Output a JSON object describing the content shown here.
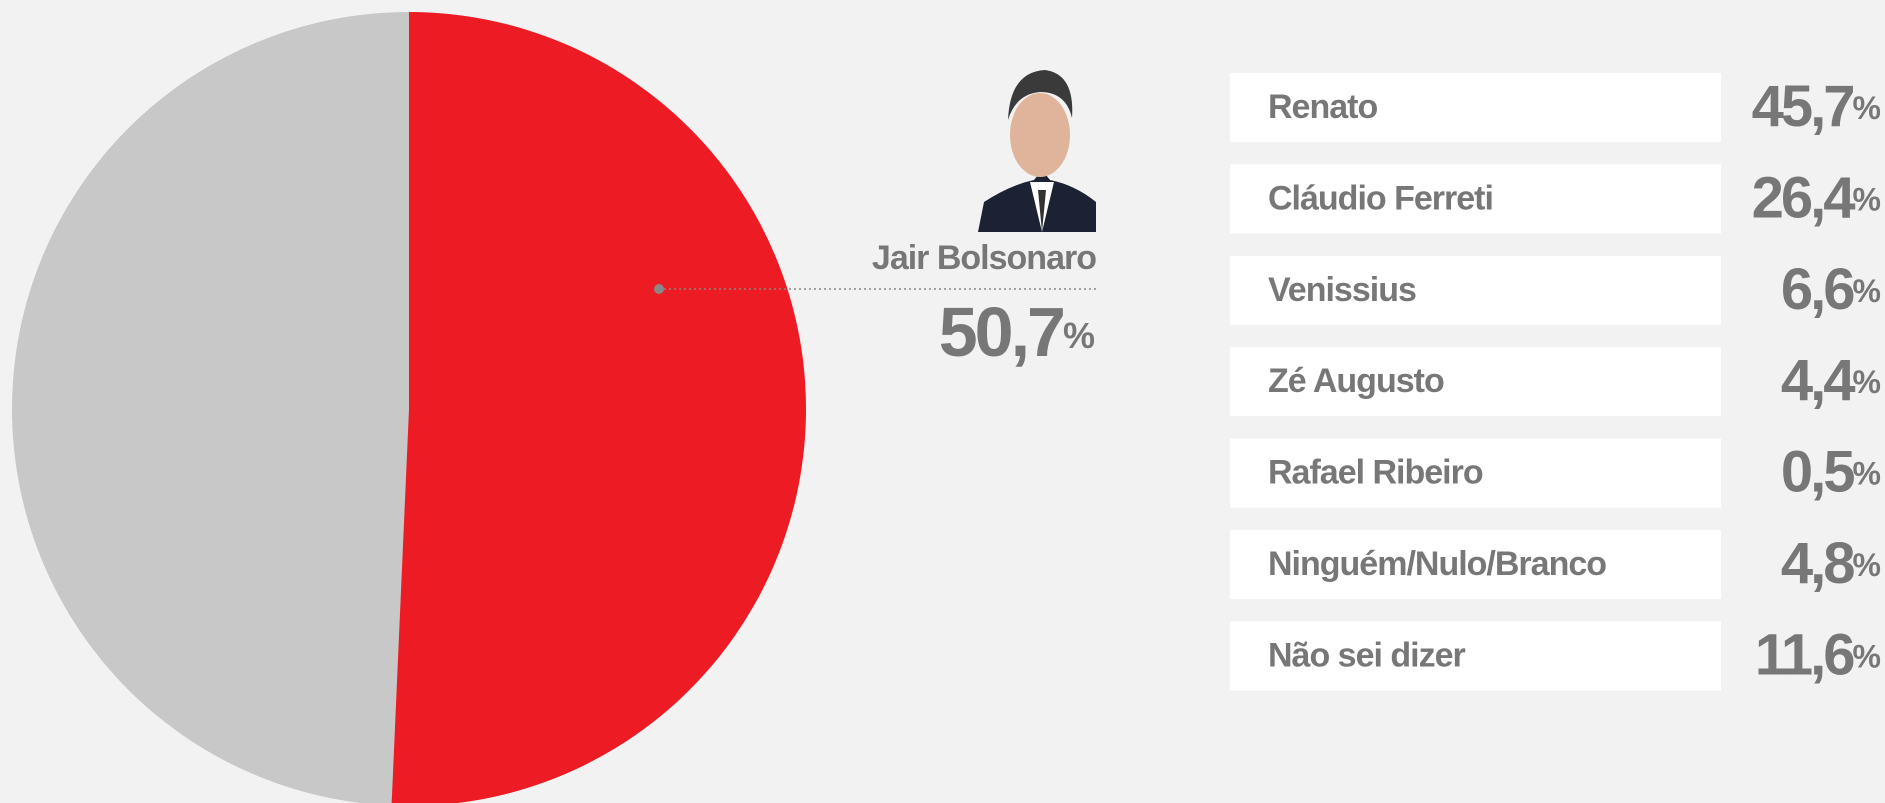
{
  "chart_data": {
    "type": "pie",
    "categories": [
      "Jair Bolsonaro"
    ],
    "values": [
      50.7
    ],
    "value_labels": [
      "50,7%"
    ],
    "color": "#ed1c24",
    "rest_color": "#c8c8c8"
  },
  "table": {
    "rows": [
      [
        "Renato",
        "45,7%"
      ],
      [
        "Cláudio Ferreti",
        "26,4%"
      ],
      [
        "Venissius",
        "6,6%"
      ],
      [
        "Zé Augusto",
        "4,4%"
      ],
      [
        "Rafael Ribeiro",
        "0,5%"
      ],
      [
        "Ninguém/Nulo/Branco",
        "4,8%"
      ],
      [
        "Não sei dizer",
        "11,6%"
      ]
    ]
  }
}
